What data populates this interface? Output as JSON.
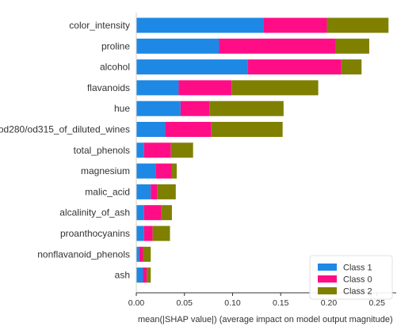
{
  "chart_data": {
    "type": "bar",
    "orientation": "horizontal",
    "stacked": true,
    "xlabel": "mean(|SHAP value|) (average impact on model output magnitude)",
    "ylabel": "",
    "xlim": [
      0,
      0.27
    ],
    "xticks": [
      "0.00",
      "0.05",
      "0.10",
      "0.15",
      "0.20",
      "0.25"
    ],
    "grid": false,
    "legend_position": "bottom-right",
    "categories": [
      "color_intensity",
      "proline",
      "alcohol",
      "flavanoids",
      "hue",
      "od280/od315_of_diluted_wines",
      "total_phenols",
      "magnesium",
      "malic_acid",
      "alcalinity_of_ash",
      "proanthocyanins",
      "nonflavanoid_phenols",
      "ash"
    ],
    "series": [
      {
        "name": "Class 1",
        "color": "#1e88e5",
        "values": [
          0.132,
          0.086,
          0.116,
          0.044,
          0.046,
          0.03,
          0.008,
          0.02,
          0.015,
          0.008,
          0.008,
          0.003,
          0.007
        ]
      },
      {
        "name": "Class 0",
        "color": "#ff0d87",
        "values": [
          0.066,
          0.121,
          0.097,
          0.055,
          0.03,
          0.048,
          0.028,
          0.017,
          0.007,
          0.018,
          0.009,
          0.004,
          0.004
        ]
      },
      {
        "name": "Class 2",
        "color": "#7f8000",
        "values": [
          0.064,
          0.035,
          0.021,
          0.09,
          0.077,
          0.074,
          0.023,
          0.005,
          0.019,
          0.011,
          0.018,
          0.008,
          0.004
        ]
      }
    ]
  }
}
